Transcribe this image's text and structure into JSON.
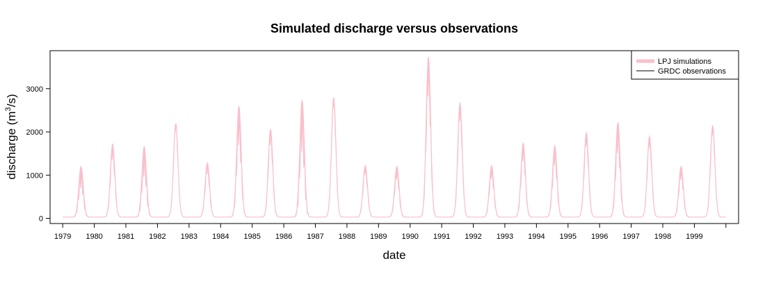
{
  "chart_data": {
    "type": "line",
    "title": "Simulated discharge versus observations",
    "xlabel": "date",
    "ylabel": "discharge (m³/s)",
    "ylabel_parts": {
      "prefix": "discharge (m",
      "sup": "3",
      "suffix": "/s)"
    },
    "xlim": [
      1978.6,
      2000.4
    ],
    "ylim": [
      -120,
      3880
    ],
    "x_ticks": [
      1979,
      1980,
      1981,
      1982,
      1983,
      1984,
      1985,
      1986,
      1987,
      1988,
      1989,
      1990,
      1991,
      1992,
      1993,
      1994,
      1995,
      1996,
      1997,
      1998,
      1999
    ],
    "y_ticks": [
      0,
      1000,
      2000,
      3000
    ],
    "grid": false,
    "legend_position": "top-right",
    "series": [
      {
        "name": "LPJ simulations",
        "color": "#f9c0cb",
        "style": "thick band",
        "annual_cycles": [
          {
            "year": 1979,
            "peak": 1200,
            "spread": 500
          },
          {
            "year": 1980,
            "peak": 1720,
            "spread": 350
          },
          {
            "year": 1981,
            "peak": 1660,
            "spread": 700
          },
          {
            "year": 1982,
            "peak": 2200,
            "spread": 150
          },
          {
            "year": 1983,
            "peak": 1280,
            "spread": 250
          },
          {
            "year": 1984,
            "peak": 2600,
            "spread": 900
          },
          {
            "year": 1985,
            "peak": 2070,
            "spread": 350
          },
          {
            "year": 1986,
            "peak": 2740,
            "spread": 1200
          },
          {
            "year": 1987,
            "peak": 2800,
            "spread": 200
          },
          {
            "year": 1988,
            "peak": 1220,
            "spread": 200
          },
          {
            "year": 1989,
            "peak": 1200,
            "spread": 300
          },
          {
            "year": 1990,
            "peak": 3740,
            "spread": 900
          },
          {
            "year": 1991,
            "peak": 2680,
            "spread": 400
          },
          {
            "year": 1992,
            "peak": 1220,
            "spread": 300
          },
          {
            "year": 1993,
            "peak": 1740,
            "spread": 400
          },
          {
            "year": 1994,
            "peak": 1680,
            "spread": 450
          },
          {
            "year": 1995,
            "peak": 1980,
            "spread": 300
          },
          {
            "year": 1996,
            "peak": 2220,
            "spread": 700
          },
          {
            "year": 1997,
            "peak": 1900,
            "spread": 250
          },
          {
            "year": 1998,
            "peak": 1200,
            "spread": 300
          },
          {
            "year": 1999,
            "peak": 2150,
            "spread": 200
          }
        ]
      },
      {
        "name": "GRDC observations",
        "color": "#000000",
        "style": "thin line",
        "annual_cycles": []
      }
    ]
  }
}
